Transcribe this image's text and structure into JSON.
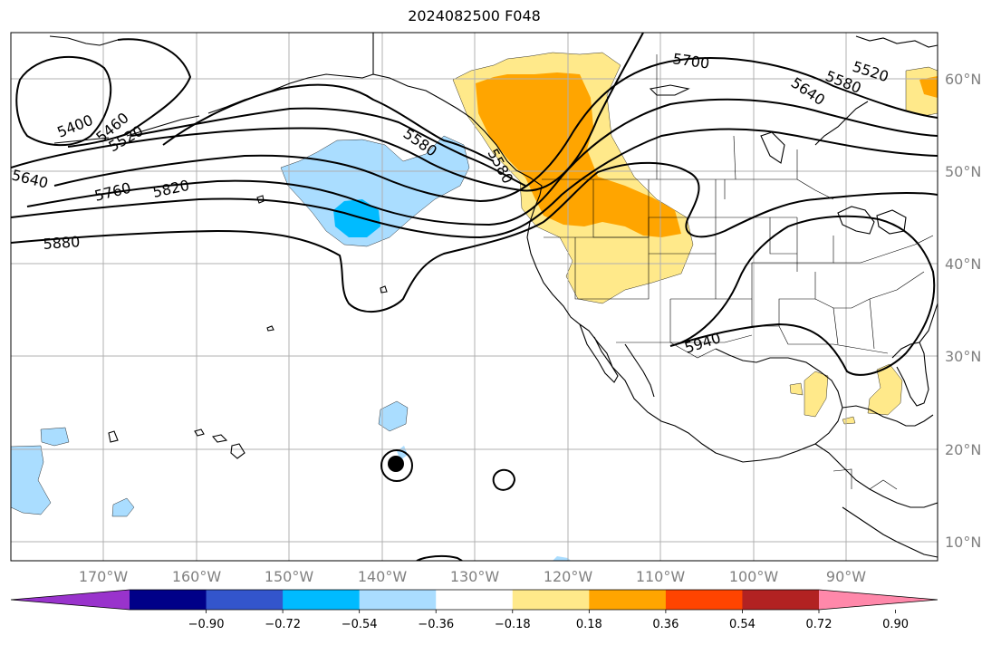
{
  "title": "2024082500 F048",
  "lon_labels": [
    "170°W",
    "160°W",
    "150°W",
    "140°W",
    "130°W",
    "120°W",
    "110°W",
    "100°W",
    "90°W"
  ],
  "lat_labels": [
    "60°N",
    "50°N",
    "40°N",
    "30°N",
    "20°N",
    "10°N"
  ],
  "contour_labels": [
    "5400",
    "5460",
    "5520",
    "5580",
    "5640",
    "5700",
    "5760",
    "5820",
    "5880",
    "5940",
    "5580",
    "5520",
    "5640",
    "5580"
  ],
  "colorbar": {
    "ticks": [
      "−0.90",
      "−0.72",
      "−0.54",
      "−0.36",
      "−0.18",
      "0.18",
      "0.36",
      "0.54",
      "0.72",
      "0.90"
    ],
    "colors": [
      "#9933cc",
      "#000088",
      "#3355cc",
      "#00bbff",
      "#aaddff",
      "#ffffff",
      "#ffe98a",
      "#ffa500",
      "#ff4400",
      "#b22222",
      "#ff88aa"
    ]
  },
  "shade_colors": {
    "light_blue": "#aaddff",
    "blue": "#00bbff",
    "light_yellow": "#ffe98a",
    "orange": "#ffa500"
  }
}
